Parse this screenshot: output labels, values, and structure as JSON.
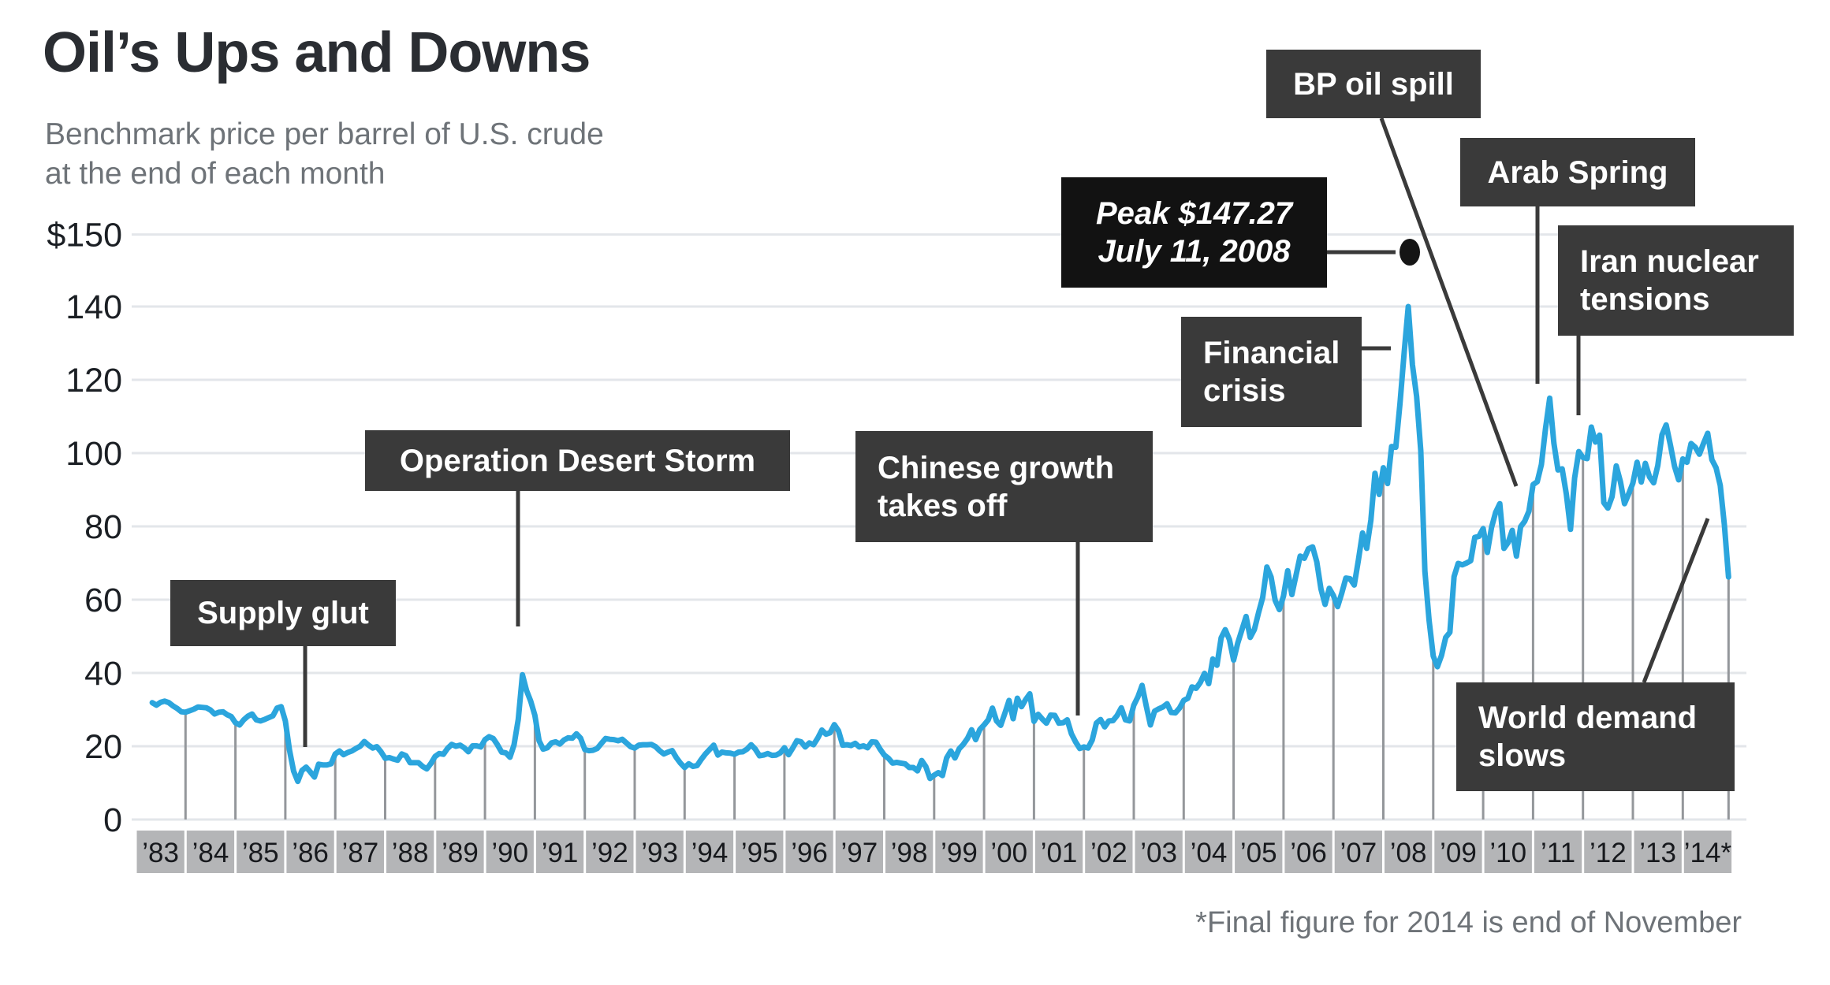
{
  "header": {
    "title": "Oil’s Ups and Downs",
    "subtitle_line1": "Benchmark price per barrel of U.S. crude",
    "subtitle_line2": "at the end of each month"
  },
  "footnote": "*Final figure for 2014 is end of November",
  "colors": {
    "line": "#2BA5DD",
    "grid": "#E3E6EA",
    "drop_line": "#94979B",
    "callout_bg": "#3A3A3A",
    "peak_callout_bg": "#121212",
    "callout_text": "#FFFFFF",
    "year_box_bg": "#B4B5B7",
    "year_box_text": "#17191D",
    "axis_text": "#1B1F24",
    "title_text": "#2A2D32",
    "muted_text": "#6E7378",
    "connector": "#3A3A3A",
    "peak_dot": "#151515"
  },
  "y_axis": {
    "tick_labels": [
      "$150",
      "140",
      "120",
      "100",
      "80",
      "60",
      "40",
      "20",
      "0"
    ],
    "tick_values": [
      150,
      140,
      120,
      100,
      80,
      60,
      40,
      20,
      0
    ]
  },
  "x_axis": {
    "year_labels": [
      "’83",
      "’84",
      "’85",
      "’86",
      "’87",
      "’88",
      "’89",
      "’90",
      "’91",
      "’92",
      "’93",
      "’94",
      "’95",
      "’96",
      "’97",
      "’98",
      "’99",
      "’00",
      "’01",
      "’02",
      "’03",
      "’04",
      "’05",
      "’06",
      "’07",
      "’08",
      "’09",
      "’10",
      "’11",
      "’12",
      "’13",
      "’14*"
    ]
  },
  "annotations": [
    {
      "id": "supply-glut",
      "lines": [
        "Supply glut"
      ],
      "points_to": "1986 price collapse"
    },
    {
      "id": "desert-storm",
      "lines": [
        "Operation Desert Storm"
      ],
      "points_to": "1990 Gulf War spike"
    },
    {
      "id": "chinese-growth",
      "lines": [
        "Chinese growth",
        "takes off"
      ],
      "points_to": "2001-02 trough before long rise"
    },
    {
      "id": "financial-crisis",
      "lines": [
        "Financial",
        "crisis"
      ],
      "points_to": "2008 run-up and crash"
    },
    {
      "id": "peak",
      "lines": [
        "Peak $147.27",
        "July 11, 2008"
      ],
      "points_to": "all-time intraday peak marker"
    },
    {
      "id": "bp-oil-spill",
      "lines": [
        "BP oil spill"
      ],
      "points_to": "2010 prices"
    },
    {
      "id": "arab-spring",
      "lines": [
        "Arab Spring"
      ],
      "points_to": "early 2011 peak"
    },
    {
      "id": "iran-nuclear",
      "lines": [
        "Iran nuclear",
        "tensions"
      ],
      "points_to": "early 2012 peak"
    },
    {
      "id": "world-demand",
      "lines": [
        "World demand",
        "slows"
      ],
      "points_to": "late 2014 slide to $66"
    }
  ],
  "chart_data": {
    "type": "line",
    "title": "Oil’s Ups and Downs",
    "subtitle": "Benchmark price per barrel of U.S. crude at the end of each month",
    "unit": "USD per barrel",
    "frequency": "monthly",
    "x_start": "1983-04",
    "x_end": "2014-11",
    "ylim": [
      0,
      150
    ],
    "y_ticks": [
      0,
      20,
      40,
      60,
      80,
      100,
      120,
      140,
      150
    ],
    "grid": true,
    "legend": false,
    "peak_marker": {
      "label": "Peak $147.27 July 11, 2008",
      "value": 147.27
    },
    "footnote": "*Final figure for 2014 is end of November",
    "series": [
      {
        "name": "U.S. benchmark crude, end-of-month price",
        "values": [
          31.9,
          31.2,
          32.0,
          32.3,
          31.9,
          31.0,
          30.3,
          29.4,
          29.3,
          29.7,
          30.1,
          30.7,
          30.6,
          30.5,
          29.9,
          28.8,
          29.3,
          29.4,
          28.6,
          28.1,
          26.4,
          25.8,
          27.2,
          28.2,
          28.8,
          27.2,
          26.9,
          27.3,
          27.8,
          28.3,
          30.4,
          30.8,
          26.9,
          18.9,
          13.2,
          10.4,
          13.4,
          14.3,
          13.0,
          11.6,
          15.1,
          14.9,
          14.9,
          15.2,
          17.9,
          18.7,
          17.7,
          18.3,
          18.7,
          19.4,
          20.0,
          21.3,
          20.3,
          19.5,
          19.9,
          18.5,
          16.7,
          16.9,
          16.5,
          16.2,
          17.9,
          17.4,
          15.5,
          15.5,
          15.5,
          14.5,
          13.8,
          15.3,
          17.2,
          18.0,
          17.8,
          19.4,
          20.5,
          20.0,
          20.3,
          19.6,
          18.5,
          20.1,
          20.1,
          19.8,
          21.8,
          22.6,
          22.1,
          20.4,
          18.4,
          18.2,
          17.0,
          20.4,
          27.3,
          39.5,
          35.2,
          32.3,
          28.4,
          21.5,
          19.2,
          19.6,
          20.9,
          21.2,
          20.6,
          21.7,
          22.3,
          22.2,
          23.4,
          22.2,
          19.1,
          18.8,
          18.9,
          19.4,
          20.8,
          22.1,
          21.9,
          21.8,
          21.5,
          21.9,
          20.9,
          19.9,
          19.5,
          20.3,
          20.4,
          20.4,
          20.5,
          19.9,
          18.8,
          17.9,
          18.4,
          18.8,
          16.9,
          15.4,
          14.2,
          15.2,
          14.5,
          14.7,
          16.4,
          17.9,
          19.1,
          20.3,
          17.6,
          18.4,
          18.2,
          18.1,
          17.8,
          18.4,
          18.5,
          19.2,
          20.4,
          19.2,
          17.4,
          17.6,
          18.0,
          17.5,
          17.6,
          18.2,
          19.6,
          17.7,
          19.5,
          21.5,
          21.2,
          19.8,
          20.9,
          20.4,
          22.2,
          24.4,
          23.3,
          23.7,
          25.9,
          24.2,
          20.3,
          20.4,
          20.2,
          20.8,
          19.8,
          20.1,
          19.6,
          21.2,
          21.1,
          19.2,
          17.6,
          16.7,
          15.4,
          15.6,
          15.4,
          15.2,
          14.2,
          14.2,
          13.3,
          16.1,
          14.4,
          11.2,
          12.1,
          12.8,
          12.0,
          16.8,
          18.7,
          16.8,
          19.3,
          20.5,
          22.1,
          24.5,
          21.8,
          24.6,
          25.8,
          27.2,
          30.4,
          26.9,
          25.7,
          29.0,
          32.5,
          27.5,
          33.1,
          30.8,
          32.7,
          34.3,
          26.8,
          28.7,
          27.4,
          26.3,
          28.5,
          28.4,
          26.3,
          26.4,
          27.2,
          23.4,
          21.2,
          19.4,
          19.8,
          19.5,
          21.7,
          26.3,
          27.3,
          25.3,
          26.9,
          27.0,
          28.4,
          30.5,
          27.2,
          26.9,
          31.2,
          33.5,
          36.6,
          31.0,
          25.8,
          29.6,
          30.2,
          30.7,
          31.6,
          29.2,
          29.1,
          30.4,
          32.5,
          33.1,
          36.2,
          35.8,
          37.4,
          39.9,
          37.1,
          43.8,
          42.1,
          49.6,
          51.8,
          49.1,
          43.5,
          48.2,
          51.8,
          55.4,
          49.7,
          51.9,
          56.5,
          60.6,
          68.9,
          66.2,
          59.8,
          57.3,
          61.0,
          67.9,
          61.4,
          66.6,
          71.9,
          71.3,
          73.9,
          74.4,
          70.3,
          62.9,
          58.7,
          63.1,
          61.1,
          58.1,
          61.8,
          65.9,
          65.7,
          64.0,
          70.7,
          78.2,
          74.0,
          81.7,
          94.5,
          88.7,
          96.0,
          91.7,
          101.8,
          101.6,
          113.5,
          127.4,
          140.0,
          124.1,
          115.5,
          100.6,
          67.8,
          54.4,
          44.6,
          41.7,
          44.8,
          49.7,
          51.1,
          66.3,
          69.9,
          69.5,
          70.0,
          70.6,
          77.0,
          77.3,
          79.4,
          72.9,
          79.7,
          83.8,
          86.2,
          74.0,
          75.6,
          78.9,
          71.9,
          79.9,
          81.4,
          84.1,
          91.4,
          92.2,
          96.9,
          106.7,
          115.0,
          102.7,
          95.4,
          95.7,
          88.8,
          79.2,
          93.2,
          100.4,
          98.8,
          98.5,
          107.1,
          103.0,
          104.9,
          86.5,
          85.0,
          88.1,
          96.5,
          92.2,
          86.2,
          88.9,
          91.8,
          97.5,
          92.1,
          97.2,
          93.5,
          91.9,
          96.6,
          105.0,
          107.7,
          102.3,
          96.4,
          92.7,
          98.4,
          97.5,
          102.6,
          101.6,
          99.7,
          102.7,
          105.4,
          98.2,
          96.0,
          91.2,
          80.5,
          66.2
        ]
      }
    ]
  }
}
